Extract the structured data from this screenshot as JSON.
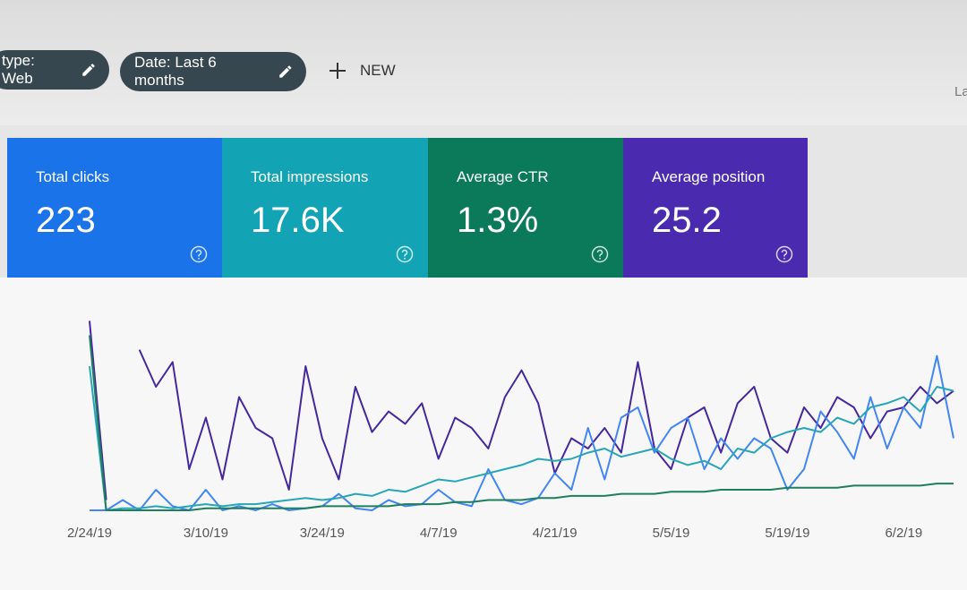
{
  "filters": [
    {
      "label": "type: Web"
    },
    {
      "label": "Date: Last 6 months"
    }
  ],
  "new_button": "NEW",
  "corner_text": "La",
  "cards": [
    {
      "label": "Total clicks",
      "value": "223",
      "color": "#1a73e8"
    },
    {
      "label": "Total impressions",
      "value": "17.6K",
      "color": "#12a4b4"
    },
    {
      "label": "Average CTR",
      "value": "1.3%",
      "color": "#0b7a5a"
    },
    {
      "label": "Average position",
      "value": "25.2",
      "color": "#4a2bb0"
    }
  ],
  "chart_data": {
    "type": "line",
    "x": [
      "2/24/19",
      null,
      null,
      null,
      null,
      null,
      null,
      "3/10/19",
      null,
      null,
      null,
      null,
      null,
      null,
      "3/24/19",
      null,
      null,
      null,
      null,
      null,
      null,
      "4/7/19",
      null,
      null,
      null,
      null,
      null,
      null,
      "4/21/19",
      null,
      null,
      null,
      null,
      null,
      null,
      "5/5/19",
      null,
      null,
      null,
      null,
      null,
      null,
      "5/19/19",
      null,
      null,
      null,
      null,
      null,
      null,
      "6/2/19",
      null,
      null,
      null
    ],
    "ylim": [
      0,
      100
    ],
    "series": [
      {
        "color": "#4527a0",
        "values": [
          92,
          5,
          null,
          78,
          60,
          72,
          20,
          45,
          15,
          55,
          40,
          35,
          10,
          70,
          35,
          15,
          60,
          38,
          48,
          42,
          52,
          25,
          45,
          40,
          30,
          55,
          68,
          52,
          18,
          35,
          30,
          40,
          28,
          72,
          30,
          20,
          45,
          50,
          28,
          52,
          60,
          35,
          28,
          50,
          40,
          55,
          50,
          35,
          48,
          50,
          60,
          52,
          58
        ]
      },
      {
        "color": "#4285f4",
        "values": [
          0,
          0,
          5,
          0,
          10,
          2,
          0,
          10,
          0,
          2,
          0,
          3,
          0,
          1,
          2,
          8,
          1,
          0,
          5,
          2,
          3,
          10,
          4,
          2,
          20,
          5,
          3,
          6,
          18,
          10,
          40,
          15,
          45,
          50,
          28,
          40,
          45,
          20,
          35,
          25,
          35,
          30,
          10,
          20,
          48,
          38,
          25,
          55,
          30,
          50,
          40,
          75,
          35
        ]
      },
      {
        "color": "#26a6b8",
        "values": [
          70,
          0,
          1,
          1,
          2,
          1,
          2,
          3,
          2,
          3,
          3,
          4,
          5,
          6,
          5,
          6,
          8,
          7,
          10,
          9,
          12,
          15,
          14,
          16,
          18,
          20,
          22,
          25,
          24,
          25,
          28,
          30,
          26,
          28,
          30,
          25,
          22,
          24,
          20,
          30,
          28,
          35,
          38,
          40,
          38,
          45,
          42,
          50,
          52,
          55,
          48,
          60,
          58
        ]
      },
      {
        "color": "#1e7f5c",
        "values": [
          85,
          0,
          0,
          0,
          0,
          0,
          0,
          1,
          1,
          1,
          1,
          1,
          1,
          1,
          2,
          2,
          2,
          2,
          2,
          3,
          3,
          3,
          4,
          4,
          5,
          5,
          5,
          6,
          6,
          7,
          7,
          7,
          8,
          8,
          8,
          9,
          9,
          9,
          10,
          10,
          10,
          10,
          11,
          11,
          11,
          11,
          12,
          12,
          12,
          12,
          12,
          13,
          13
        ]
      }
    ]
  }
}
